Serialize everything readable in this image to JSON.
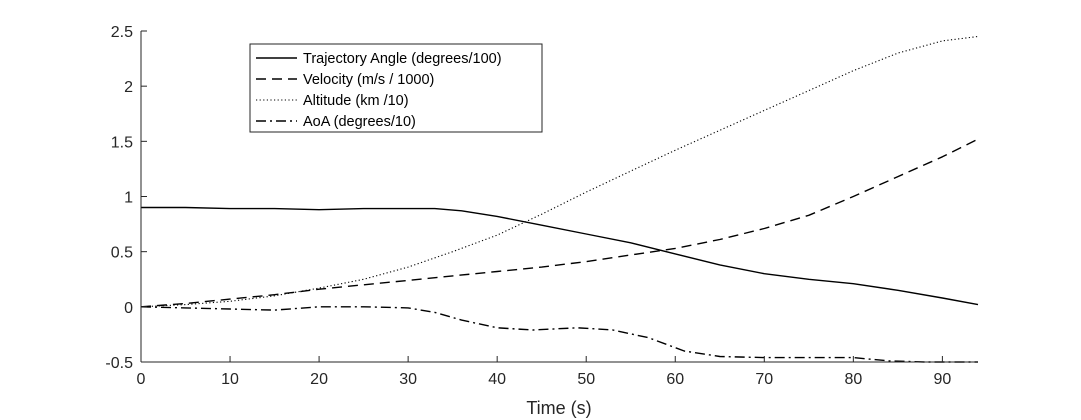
{
  "chart_data": {
    "type": "line",
    "title": "",
    "xlabel": "Time (s)",
    "ylabel": "",
    "xlim": [
      0,
      94
    ],
    "ylim": [
      -0.5,
      2.5
    ],
    "x_ticks": [
      0,
      10,
      20,
      30,
      40,
      50,
      60,
      70,
      80,
      90
    ],
    "y_ticks": [
      -0.5,
      0,
      0.5,
      1,
      1.5,
      2,
      2.5
    ],
    "x_tick_labels": [
      "0",
      "10",
      "20",
      "30",
      "40",
      "50",
      "60",
      "70",
      "80",
      "90"
    ],
    "y_tick_labels": [
      "-0.5",
      "0",
      "0.5",
      "1",
      "1.5",
      "2",
      "2.5"
    ],
    "grid": false,
    "legend_position": "top-left",
    "series": [
      {
        "name": "Trajectory Angle (degrees/100)",
        "style": "solid",
        "x": [
          0,
          5,
          10,
          15,
          20,
          25,
          30,
          33,
          36,
          40,
          45,
          50,
          55,
          60,
          65,
          70,
          75,
          80,
          85,
          90,
          94
        ],
        "y": [
          0.9,
          0.9,
          0.89,
          0.89,
          0.88,
          0.89,
          0.89,
          0.89,
          0.87,
          0.82,
          0.74,
          0.66,
          0.58,
          0.48,
          0.38,
          0.3,
          0.25,
          0.21,
          0.15,
          0.08,
          0.02
        ]
      },
      {
        "name": "Velocity (m/s / 1000)",
        "style": "dashed",
        "x": [
          0,
          5,
          10,
          15,
          20,
          25,
          30,
          35,
          40,
          45,
          50,
          55,
          60,
          65,
          70,
          75,
          80,
          85,
          90,
          94
        ],
        "y": [
          0.0,
          0.03,
          0.07,
          0.11,
          0.16,
          0.2,
          0.24,
          0.28,
          0.32,
          0.36,
          0.41,
          0.47,
          0.53,
          0.61,
          0.71,
          0.83,
          1.0,
          1.18,
          1.36,
          1.52
        ]
      },
      {
        "name": "Altitude (km /10)",
        "style": "dotted",
        "x": [
          0,
          5,
          10,
          15,
          20,
          25,
          30,
          35,
          40,
          45,
          50,
          55,
          60,
          65,
          70,
          75,
          80,
          85,
          90,
          94
        ],
        "y": [
          0.0,
          0.02,
          0.05,
          0.1,
          0.17,
          0.25,
          0.36,
          0.5,
          0.65,
          0.84,
          1.04,
          1.23,
          1.42,
          1.6,
          1.78,
          1.96,
          2.14,
          2.3,
          2.41,
          2.45
        ]
      },
      {
        "name": "AoA (degrees/10)",
        "style": "dashdot",
        "x": [
          0,
          5,
          10,
          15,
          20,
          25,
          30,
          33,
          36,
          40,
          44,
          49,
          53,
          57,
          61,
          65,
          70,
          75,
          80,
          84,
          88,
          94
        ],
        "y": [
          0.0,
          -0.01,
          -0.02,
          -0.03,
          0.0,
          0.0,
          -0.01,
          -0.05,
          -0.12,
          -0.19,
          -0.21,
          -0.19,
          -0.21,
          -0.28,
          -0.4,
          -0.45,
          -0.46,
          -0.46,
          -0.46,
          -0.49,
          -0.5,
          -0.5
        ]
      }
    ]
  }
}
